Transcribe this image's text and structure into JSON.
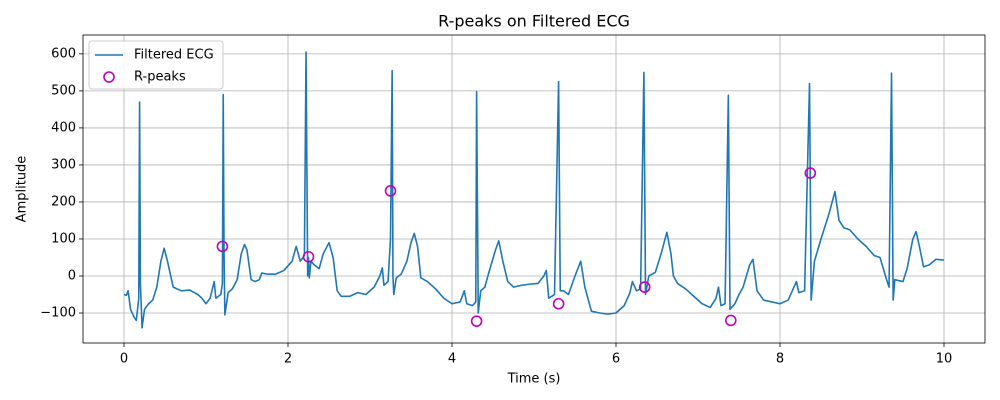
{
  "chart_data": {
    "type": "line",
    "title": "R-peaks on Filtered ECG",
    "x_label": "Time (s)",
    "y_label": "Amplitude",
    "xlim": [
      -0.5,
      10.5
    ],
    "ylim": [
      -181,
      651
    ],
    "xticks": [
      0,
      2,
      4,
      6,
      8,
      10
    ],
    "yticks": [
      {
        "value": -100,
        "label": "−100"
      },
      0,
      100,
      200,
      300,
      400,
      500,
      600
    ],
    "grid": true,
    "legend": "upper left",
    "series": [
      {
        "name": "Filtered ECG",
        "type": "line",
        "color": "#1f77b4",
        "x": [
          0,
          0.03,
          0.05,
          0.08,
          0.12,
          0.15,
          0.18,
          0.19,
          0.2,
          0.22,
          0.25,
          0.3,
          0.35,
          0.4,
          0.45,
          0.49,
          0.53,
          0.6,
          0.7,
          0.8,
          0.9,
          0.95,
          1.0,
          1.05,
          1.1,
          1.12,
          1.18,
          1.2,
          1.21,
          1.22,
          1.23,
          1.27,
          1.32,
          1.38,
          1.43,
          1.47,
          1.5,
          1.55,
          1.6,
          1.65,
          1.68,
          1.75,
          1.85,
          1.95,
          2.05,
          2.1,
          2.15,
          2.2,
          2.22,
          2.24,
          2.25,
          2.26,
          2.28,
          2.32,
          2.38,
          2.43,
          2.5,
          2.55,
          2.6,
          2.65,
          2.75,
          2.85,
          2.95,
          3.05,
          3.12,
          3.15,
          3.17,
          3.22,
          3.25,
          3.27,
          3.28,
          3.29,
          3.32,
          3.38,
          3.45,
          3.5,
          3.54,
          3.58,
          3.62,
          3.7,
          3.8,
          3.9,
          4.0,
          4.1,
          4.15,
          4.18,
          4.25,
          4.29,
          4.3,
          4.32,
          4.35,
          4.4,
          4.45,
          4.53,
          4.57,
          4.62,
          4.68,
          4.75,
          4.85,
          4.95,
          5.05,
          5.12,
          5.15,
          5.18,
          5.25,
          5.3,
          5.32,
          5.36,
          5.42,
          5.5,
          5.57,
          5.62,
          5.7,
          5.8,
          5.9,
          6.0,
          6.1,
          6.17,
          6.2,
          6.25,
          6.3,
          6.34,
          6.36,
          6.4,
          6.48,
          6.55,
          6.62,
          6.67,
          6.7,
          6.75,
          6.85,
          6.95,
          7.05,
          7.15,
          7.22,
          7.25,
          7.28,
          7.33,
          7.37,
          7.39,
          7.45,
          7.5,
          7.55,
          7.63,
          7.67,
          7.72,
          7.8,
          7.9,
          8.0,
          8.1,
          8.2,
          8.23,
          8.3,
          8.36,
          8.38,
          8.42,
          8.5,
          8.6,
          8.67,
          8.72,
          8.78,
          8.85,
          8.95,
          9.05,
          9.15,
          9.22,
          9.3,
          9.33,
          9.36,
          9.38,
          9.4,
          9.5,
          9.55,
          9.62,
          9.66,
          9.7,
          9.75,
          9.82,
          9.9,
          10.0
        ],
        "values": [
          -50,
          -52,
          -40,
          -90,
          -110,
          -120,
          -60,
          470,
          -20,
          -140,
          -90,
          -75,
          -65,
          -30,
          40,
          75,
          40,
          -30,
          -40,
          -38,
          -50,
          -60,
          -75,
          -60,
          -15,
          -60,
          -50,
          -20,
          490,
          60,
          -105,
          -45,
          -35,
          -10,
          60,
          85,
          70,
          -10,
          -15,
          -10,
          8,
          5,
          5,
          15,
          40,
          80,
          40,
          55,
          605,
          0,
          50,
          -5,
          40,
          30,
          20,
          60,
          90,
          50,
          -40,
          -55,
          -55,
          -45,
          -50,
          -30,
          0,
          22,
          -25,
          -15,
          100,
          555,
          0,
          -50,
          -5,
          5,
          40,
          90,
          115,
          80,
          -5,
          -15,
          -35,
          -60,
          -75,
          -70,
          -40,
          -75,
          -80,
          -70,
          498,
          -100,
          -40,
          -30,
          10,
          70,
          95,
          40,
          -15,
          -30,
          -25,
          -22,
          -20,
          0,
          15,
          -60,
          -50,
          525,
          -40,
          -40,
          -50,
          0,
          40,
          -30,
          -95,
          -100,
          -103,
          -100,
          -80,
          -45,
          -15,
          -40,
          -35,
          550,
          -50,
          0,
          10,
          60,
          118,
          60,
          0,
          -20,
          -35,
          -55,
          -75,
          -85,
          -60,
          -30,
          -80,
          -75,
          488,
          -90,
          -75,
          -50,
          -30,
          30,
          45,
          -40,
          -65,
          -70,
          -75,
          -65,
          -15,
          -45,
          -40,
          520,
          -65,
          40,
          100,
          170,
          228,
          150,
          130,
          125,
          100,
          80,
          55,
          50,
          -10,
          -30,
          548,
          -65,
          -10,
          -15,
          20,
          100,
          120,
          80,
          25,
          30,
          45,
          43
        ]
      },
      {
        "name": "R-peaks",
        "type": "scatter",
        "color": "#c000c0",
        "x": [
          1.2,
          2.25,
          3.25,
          4.3,
          5.3,
          6.35,
          7.4,
          8.37
        ],
        "values": [
          80,
          52,
          230,
          -122,
          -75,
          -30,
          -120,
          278
        ]
      }
    ]
  }
}
